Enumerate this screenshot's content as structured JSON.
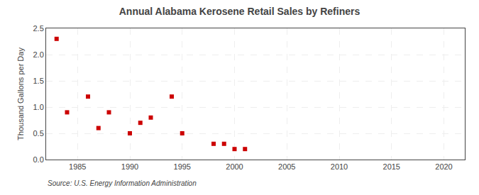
{
  "chart_data": {
    "type": "scatter",
    "title": "Annual Alabama Kerosene Retail Sales by Refiners",
    "ylabel": "Thousand Gallons per Day",
    "annotations": [
      "Source: U.S. Energy Information Administration"
    ],
    "x": [
      1983,
      1984,
      1986,
      1987,
      1988,
      1990,
      1991,
      1992,
      1994,
      1995,
      1998,
      1999,
      2000,
      2001
    ],
    "values": [
      2.3,
      0.9,
      1.2,
      0.6,
      0.9,
      0.5,
      0.7,
      0.8,
      1.2,
      0.5,
      0.3,
      0.3,
      0.2,
      0.2
    ],
    "color": "#cc0000",
    "marker": "square",
    "xlim": [
      1982,
      2022
    ],
    "xticks": [
      1985,
      1990,
      1995,
      2000,
      2005,
      2010,
      2015,
      2020
    ],
    "ylim": [
      0.0,
      2.5
    ],
    "yticks": [
      {
        "value": 0,
        "label": "0.0"
      },
      0.5,
      {
        "value": 1,
        "label": "1.0"
      },
      1.5,
      {
        "value": 2,
        "label": "2.0"
      },
      2.5
    ],
    "grid": true
  }
}
